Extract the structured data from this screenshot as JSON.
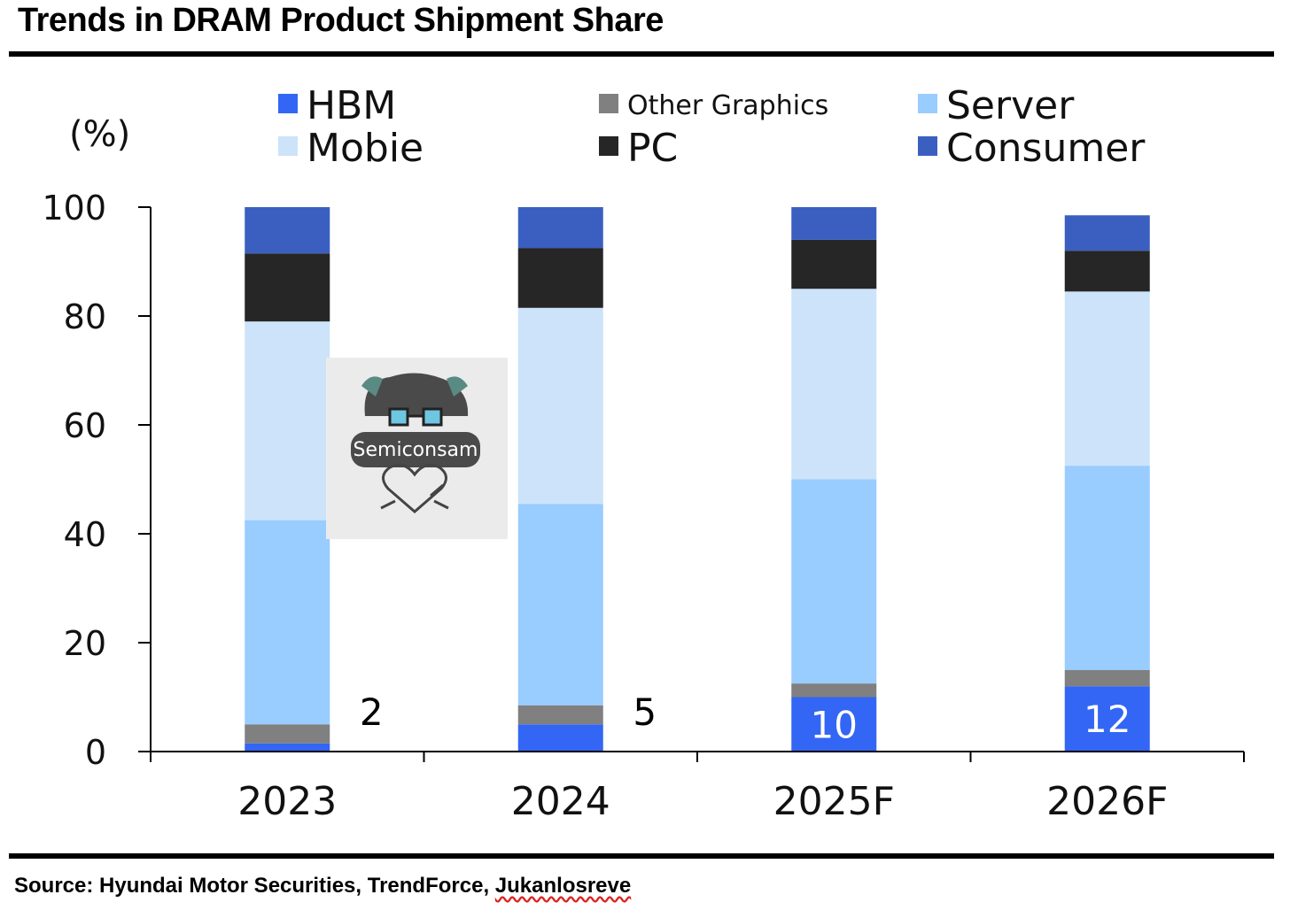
{
  "chart_data": {
    "type": "bar",
    "stacked": true,
    "title": "Trends in DRAM Product Shipment Share",
    "unit": "(%)",
    "ylim": [
      0,
      100
    ],
    "yticks": [
      0,
      20,
      40,
      60,
      80,
      100
    ],
    "categories": [
      "2023",
      "2024",
      "2025F",
      "2026F"
    ],
    "series": [
      {
        "name": "HBM",
        "color": "#3366f5",
        "values": [
          1.5,
          5,
          10,
          12
        ]
      },
      {
        "name": "Other Graphics",
        "color": "#808080",
        "values": [
          3.5,
          3.5,
          2.5,
          3
        ]
      },
      {
        "name": "Server",
        "color": "#99ccff",
        "values": [
          37.5,
          37,
          37.5,
          37.5
        ]
      },
      {
        "name": "Mobie",
        "color": "#cce3fa",
        "values": [
          36.5,
          36,
          35,
          32
        ]
      },
      {
        "name": "PC",
        "color": "#262626",
        "values": [
          12.5,
          11,
          9,
          7.5
        ]
      },
      {
        "name": "Consumer",
        "color": "#3a5fc0",
        "values": [
          8.5,
          7.5,
          6,
          6.5
        ]
      }
    ],
    "data_labels": [
      "2",
      "5",
      "10",
      "12"
    ],
    "legend_position": "top",
    "grid": false
  },
  "source": {
    "prefix": "Source: Hyundai Motor Securities, TrendForce, ",
    "last": "Jukanlosreve"
  },
  "watermark": {
    "text": "Semiconsam"
  }
}
